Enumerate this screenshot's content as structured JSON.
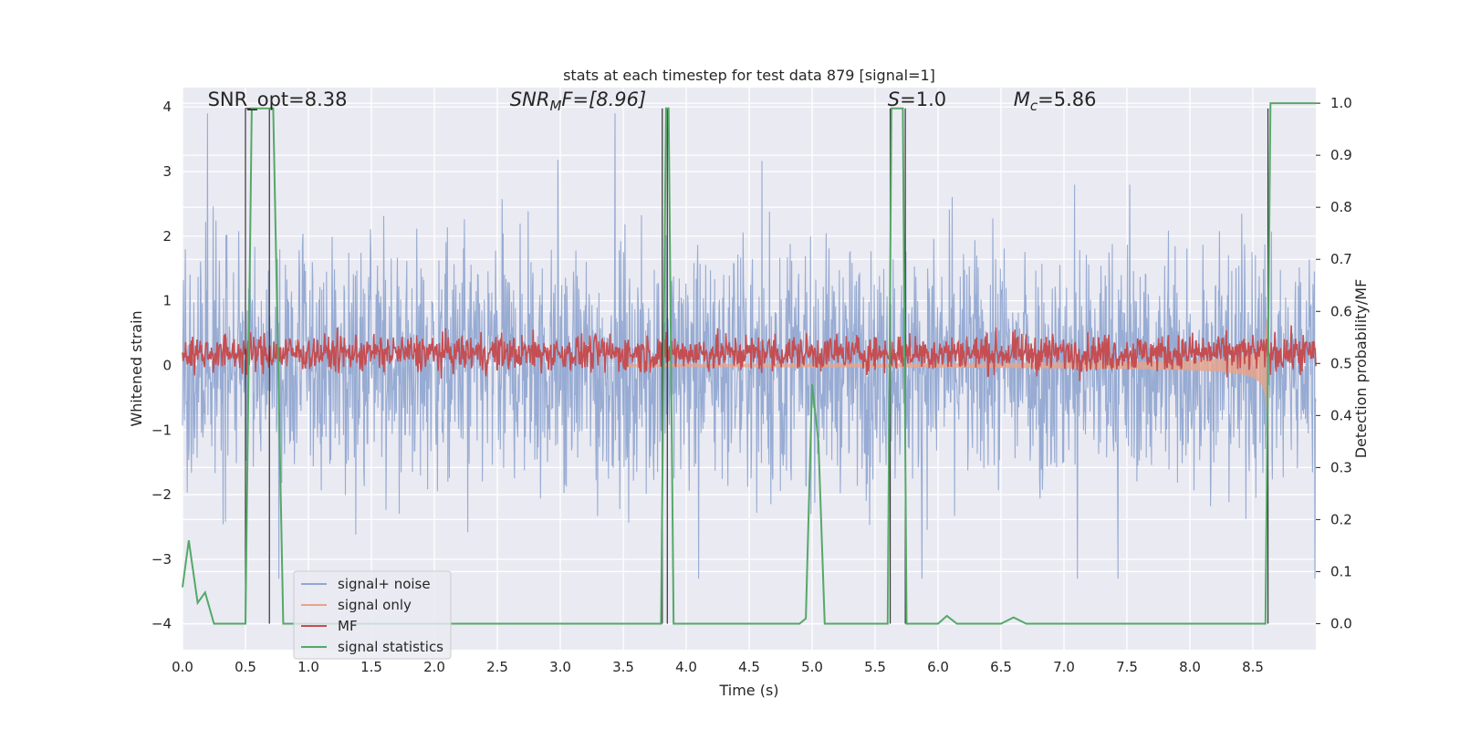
{
  "chart_data": {
    "type": "line",
    "title": "stats at each timestep for test data 879 [signal=1]",
    "xlabel": "Time (s)",
    "ylabel": "Whitened strain",
    "y2label": "Detection probability/MF",
    "xlim": [
      0,
      9.0
    ],
    "ylim": [
      -4.4,
      4.3
    ],
    "y2lim": [
      -0.05,
      1.03
    ],
    "x_ticks": [
      "0.0",
      "0.5",
      "1.0",
      "1.5",
      "2.0",
      "2.5",
      "3.0",
      "3.5",
      "4.0",
      "4.5",
      "5.0",
      "5.5",
      "6.0",
      "6.5",
      "7.0",
      "7.5",
      "8.0",
      "8.5"
    ],
    "y_ticks": [
      "−4",
      "−3",
      "−2",
      "−1",
      "0",
      "1",
      "2",
      "3",
      "4"
    ],
    "y2_ticks": [
      "0.0",
      "0.1",
      "0.2",
      "0.3",
      "0.4",
      "0.5",
      "0.6",
      "0.7",
      "0.8",
      "0.9",
      "1.0"
    ],
    "grid": true,
    "legend_position": "lower-left",
    "annotations": [
      {
        "id": "snr_opt",
        "label": "SNR_opt=8.38",
        "x": 0.2,
        "y": 4.1
      },
      {
        "id": "snr_mf",
        "label": "SNR",
        "sub": "M",
        "rest": "F=[8.96]",
        "x": 2.6,
        "y": 4.1
      },
      {
        "id": "s",
        "label": "S",
        "rest": "=1.0",
        "x": 5.6,
        "y": 4.1
      },
      {
        "id": "mc",
        "label": "M",
        "sub": "c",
        "rest": "=5.86",
        "x": 6.6,
        "y": 4.1
      }
    ],
    "vertical_lines": [
      0.5,
      0.69,
      3.81,
      3.85,
      5.62,
      5.74,
      8.62
    ],
    "series": [
      {
        "name": "signal+ noise",
        "color": "#92a8d1",
        "kind": "noise",
        "amplitude_range": [
          -3.3,
          3.9
        ]
      },
      {
        "name": "signal only",
        "color": "#e8a48a",
        "kind": "chirp",
        "merger_time": 8.62,
        "peak_amplitude": 0.75
      },
      {
        "name": "MF",
        "color": "#c44e52",
        "kind": "mf",
        "mean": 0.52,
        "spread": 0.02
      },
      {
        "name": "signal statistics",
        "color": "#55a868",
        "kind": "prob",
        "x": [
          0.0,
          0.05,
          0.12,
          0.18,
          0.25,
          0.5,
          0.55,
          0.6,
          0.68,
          0.72,
          0.8,
          3.8,
          3.84,
          3.86,
          3.9,
          4.9,
          4.95,
          5.0,
          5.05,
          5.1,
          5.6,
          5.63,
          5.67,
          5.72,
          5.75,
          5.8,
          6.0,
          6.07,
          6.15,
          6.5,
          6.6,
          6.7,
          8.6,
          8.64,
          8.9,
          9.0
        ],
        "y": [
          0.07,
          0.16,
          0.04,
          0.06,
          0.0,
          0.0,
          0.99,
          0.99,
          0.99,
          0.99,
          0.0,
          0.0,
          0.99,
          0.99,
          0.0,
          0.0,
          0.01,
          0.46,
          0.35,
          0.0,
          0.0,
          0.99,
          0.99,
          0.99,
          0.0,
          0.0,
          0.0,
          0.015,
          0.0,
          0.0,
          0.012,
          0.0,
          0.0,
          1.0,
          1.0,
          1.0
        ]
      }
    ]
  }
}
